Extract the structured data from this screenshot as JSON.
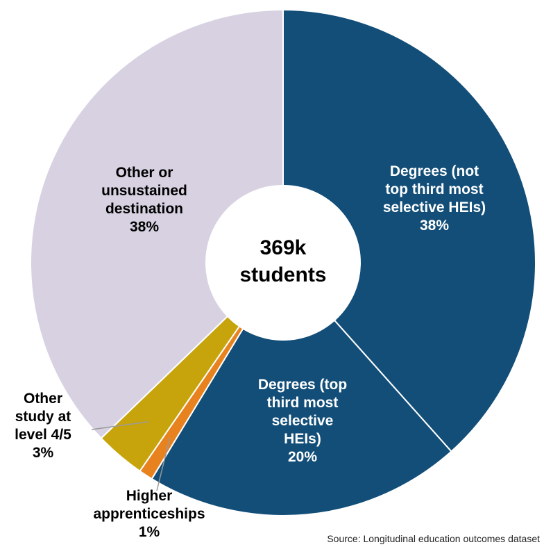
{
  "chart_data": {
    "type": "pie",
    "donut": true,
    "center_label": [
      "369k",
      "students"
    ],
    "slices": [
      {
        "label": [
          "Degrees (not",
          "top third most",
          "selective HEIs)"
        ],
        "percent_label": "38%",
        "value": 38.4,
        "color": "#124e78",
        "label_color": "#ffffff"
      },
      {
        "label": [
          "Degrees (top",
          "third most",
          "selective",
          "HEIs)"
        ],
        "percent_label": "20%",
        "value": 20.3,
        "color": "#124e78",
        "label_color": "#ffffff"
      },
      {
        "label": [
          "Higher",
          "apprenticeships"
        ],
        "percent_label": "1%",
        "value": 0.9,
        "color": "#e8821e",
        "label_color": "#000000"
      },
      {
        "label": [
          "Other",
          "study at",
          "level 4/5"
        ],
        "percent_label": "3%",
        "value": 3.2,
        "color": "#c7a40b",
        "label_color": "#000000"
      },
      {
        "label": [
          "Other or",
          "unsustained",
          "destination"
        ],
        "percent_label": "38%",
        "value": 37.2,
        "color": "#d7d1e1",
        "label_color": "#000000"
      }
    ]
  },
  "source_text": "Source: Longitudinal education outcomes dataset"
}
